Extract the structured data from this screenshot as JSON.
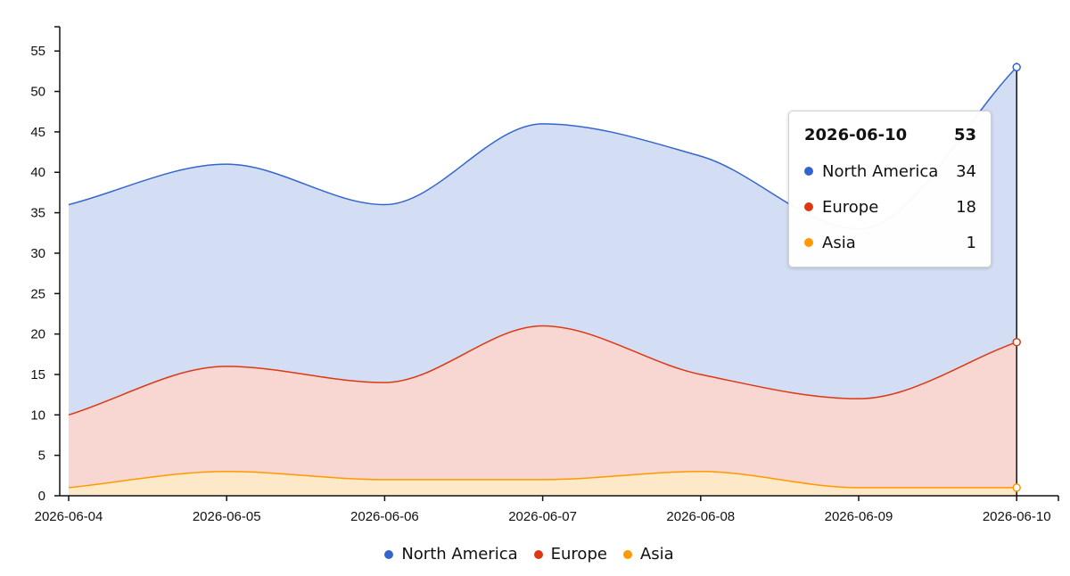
{
  "chart_data": {
    "type": "area",
    "stacked": true,
    "x": [
      "2026-06-04",
      "2026-06-05",
      "2026-06-06",
      "2026-06-07",
      "2026-06-08",
      "2026-06-09",
      "2026-06-10"
    ],
    "series": [
      {
        "name": "North America",
        "color": "#3366cc",
        "fill": "#d3def4",
        "values": [
          26,
          25,
          22,
          25,
          27,
          21,
          34
        ]
      },
      {
        "name": "Europe",
        "color": "#dc3912",
        "fill": "#f8d6d2",
        "values": [
          9,
          13,
          12,
          19,
          12,
          11,
          18
        ]
      },
      {
        "name": "Asia",
        "color": "#ff9900",
        "fill": "#fde9c8",
        "values": [
          1,
          3,
          2,
          2,
          3,
          1,
          1
        ]
      }
    ],
    "stack_order_bottom_to_top": [
      "Asia",
      "Europe",
      "North America"
    ],
    "ylim": [
      0,
      58
    ],
    "y_ticks": [
      0,
      5,
      10,
      15,
      20,
      25,
      30,
      35,
      40,
      45,
      50,
      55
    ],
    "grid": false,
    "legend_position": "bottom"
  },
  "tooltip": {
    "date": "2026-06-10",
    "total": "53",
    "rows": [
      {
        "name": "North America",
        "value": "34",
        "color": "#3366cc"
      },
      {
        "name": "Europe",
        "value": "18",
        "color": "#dc3912"
      },
      {
        "name": "Asia",
        "value": "1",
        "color": "#ff9900"
      }
    ]
  }
}
